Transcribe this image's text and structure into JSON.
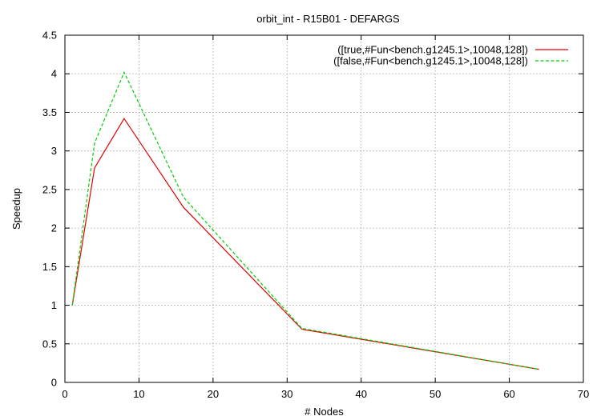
{
  "chart_data": {
    "type": "line",
    "title": "orbit_int - R15B01 - DEFARGS",
    "xlabel": "# Nodes",
    "ylabel": "Speedup",
    "xlim": [
      0,
      70
    ],
    "ylim": [
      0,
      4.5
    ],
    "xticks": [
      0,
      10,
      20,
      30,
      40,
      50,
      60,
      70
    ],
    "yticks": [
      0,
      0.5,
      1,
      1.5,
      2,
      2.5,
      3,
      3.5,
      4,
      4.5
    ],
    "xtick_labels": [
      "0",
      "10",
      "20",
      "30",
      "40",
      "50",
      "60",
      "70"
    ],
    "ytick_labels": [
      "0",
      "0.5",
      "1",
      "1.5",
      "2",
      "2.5",
      "3",
      "3.5",
      "4",
      "4.5"
    ],
    "grid": true,
    "legend_position": "top-right",
    "series": [
      {
        "name": "([true,#Fun<bench.g1245.1>,10048,128])",
        "color": "#e00000",
        "dash": "solid",
        "x": [
          1,
          4,
          8,
          16,
          32,
          64
        ],
        "y": [
          1.0,
          2.78,
          3.42,
          2.27,
          0.69,
          0.17
        ]
      },
      {
        "name": "([false,#Fun<bench.g1245.1>,10048,128])",
        "color": "#00d000",
        "dash": "dashed",
        "x": [
          1,
          4,
          8,
          16,
          32,
          64
        ],
        "y": [
          1.0,
          3.1,
          4.02,
          2.4,
          0.7,
          0.17
        ]
      }
    ]
  }
}
